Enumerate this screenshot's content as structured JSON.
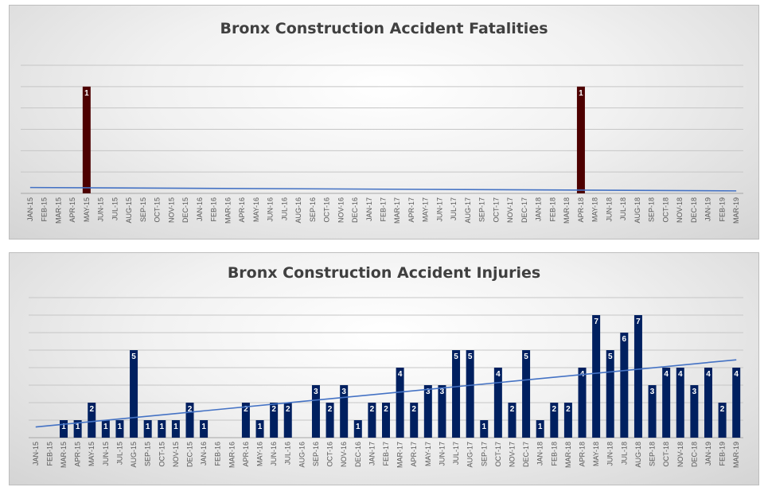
{
  "chart_data": [
    {
      "type": "bar",
      "title": "Bronx Construction Accident Fatalities",
      "categories": [
        "JAN-15",
        "FEB-15",
        "MAR-15",
        "APR-15",
        "MAY-15",
        "JUN-15",
        "JUL-15",
        "AUG-15",
        "SEP-15",
        "OCT-15",
        "NOV-15",
        "DEC-15",
        "JAN-16",
        "FEB-16",
        "MAR-16",
        "APR-16",
        "MAY-16",
        "JUN-16",
        "JUL-16",
        "AUG-16",
        "SEP-16",
        "OCT-16",
        "NOV-16",
        "DEC-16",
        "JAN-17",
        "FEB-17",
        "MAR-17",
        "APR-17",
        "MAY-17",
        "JUN-17",
        "JUL-17",
        "AUG-17",
        "SEP-17",
        "OCT-17",
        "NOV-17",
        "DEC-17",
        "JAN-18",
        "FEB-18",
        "MAR-18",
        "APR-18",
        "MAY-18",
        "JUN-18",
        "JUL-18",
        "AUG-18",
        "SEP-18",
        "OCT-18",
        "NOV-18",
        "DEC-18",
        "JAN-19",
        "FEB-19",
        "MAR-19"
      ],
      "values": [
        0,
        0,
        0,
        0,
        1,
        0,
        0,
        0,
        0,
        0,
        0,
        0,
        0,
        0,
        0,
        0,
        0,
        0,
        0,
        0,
        0,
        0,
        0,
        0,
        0,
        0,
        0,
        0,
        0,
        0,
        0,
        0,
        0,
        0,
        0,
        0,
        0,
        0,
        0,
        1,
        0,
        0,
        0,
        0,
        0,
        0,
        0,
        0,
        0,
        0,
        0
      ],
      "ylim": [
        0,
        1.2
      ],
      "trendline": "linear",
      "bar_color": "#4d0000",
      "trend_color": "#4472c4",
      "grid": true
    },
    {
      "type": "bar",
      "title": "Bronx Construction Accident Injuries",
      "categories": [
        "JAN-15",
        "FEB-15",
        "MAR-15",
        "APR-15",
        "MAY-15",
        "JUN-15",
        "JUL-15",
        "AUG-15",
        "SEP-15",
        "OCT-15",
        "NOV-15",
        "DEC-15",
        "JAN-16",
        "FEB-16",
        "MAR-16",
        "APR-16",
        "MAY-16",
        "JUN-16",
        "JUL-16",
        "AUG-16",
        "SEP-16",
        "OCT-16",
        "NOV-16",
        "DEC-16",
        "JAN-17",
        "FEB-17",
        "MAR-17",
        "APR-17",
        "MAY-17",
        "JUN-17",
        "JUL-17",
        "AUG-17",
        "SEP-17",
        "OCT-17",
        "NOV-17",
        "DEC-17",
        "JAN-18",
        "FEB-18",
        "MAR-18",
        "APR-18",
        "MAY-18",
        "JUN-18",
        "JUL-18",
        "AUG-18",
        "SEP-18",
        "OCT-18",
        "NOV-18",
        "DEC-18",
        "JAN-19",
        "FEB-19",
        "MAR-19"
      ],
      "values": [
        0,
        0,
        1,
        1,
        2,
        1,
        1,
        5,
        1,
        1,
        1,
        2,
        1,
        0,
        0,
        2,
        1,
        2,
        2,
        0,
        3,
        2,
        3,
        1,
        2,
        2,
        4,
        2,
        3,
        3,
        5,
        5,
        1,
        4,
        2,
        5,
        1,
        2,
        2,
        4,
        7,
        5,
        6,
        7,
        3,
        4,
        4,
        3,
        4,
        2,
        4
      ],
      "ylim": [
        0,
        8
      ],
      "trendline": "linear",
      "bar_color": "#002060",
      "trend_color": "#4472c4",
      "grid": true
    }
  ]
}
